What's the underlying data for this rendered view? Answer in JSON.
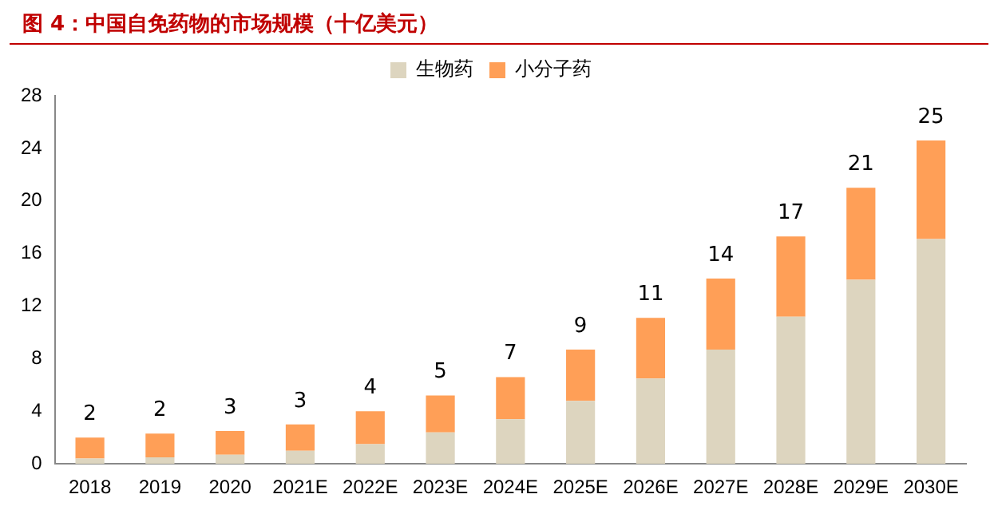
{
  "chart_data": {
    "type": "bar",
    "title": "图 4：中国自免药物的市场规模（十亿美元）",
    "categories": [
      "2018",
      "2019",
      "2020",
      "2021E",
      "2022E",
      "2023E",
      "2024E",
      "2025E",
      "2026E",
      "2027E",
      "2028E",
      "2029E",
      "2030E"
    ],
    "series": [
      {
        "name": "生物药",
        "color": "#ddd5bf",
        "values": [
          0.4,
          0.5,
          0.7,
          1.0,
          1.5,
          2.4,
          3.4,
          4.8,
          6.5,
          8.7,
          11.2,
          14.0,
          17.1
        ]
      },
      {
        "name": "小分子药",
        "color": "#ff9f57",
        "values": [
          1.6,
          1.8,
          1.8,
          2.0,
          2.5,
          2.8,
          3.2,
          3.9,
          4.6,
          5.4,
          6.1,
          7.0,
          7.5
        ]
      }
    ],
    "stacked": true,
    "totals": [
      "2",
      "2",
      "3",
      "3",
      "4",
      "5",
      "7",
      "9",
      "11",
      "14",
      "17",
      "21",
      "25"
    ],
    "ylim": [
      0,
      28
    ],
    "yticks": [
      0,
      4,
      8,
      12,
      16,
      20,
      24,
      28
    ],
    "grid": false,
    "legend": "top"
  }
}
